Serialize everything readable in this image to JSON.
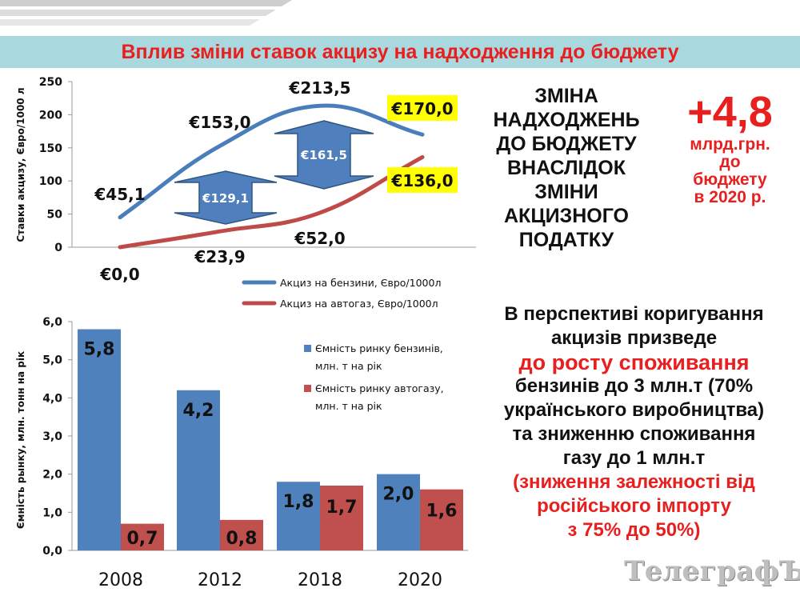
{
  "title": "Вплив зміни ставок акцизу на надходження до бюджету",
  "chart_data": [
    {
      "type": "line",
      "ylabel": "Ставки акцизу,  Євро/1000 л",
      "ylim": [
        0,
        250
      ],
      "yticks": [
        "0",
        "50",
        "100",
        "150",
        "200",
        "250"
      ],
      "x": [
        "2008",
        "2012",
        "2018",
        "2020"
      ],
      "series": [
        {
          "name": "Акциз на бензини, Євро/1000л",
          "values": [
            45.1,
            153.0,
            213.5,
            170.0
          ],
          "labels": [
            "€45,1",
            "€153,0",
            "€213,5",
            "€170,0"
          ],
          "color": "#4a7ebb"
        },
        {
          "name": "Акциз на автогаз, Євро/1000л",
          "values": [
            0.0,
            23.9,
            52.0,
            136.0
          ],
          "labels": [
            "€0,0",
            "€23,9",
            "€52,0",
            "€136,0"
          ],
          "color": "#be4b48"
        }
      ],
      "highlight_color": "#ffff00",
      "differences": [
        "€129,1",
        "€161,5"
      ],
      "legend": "bottom"
    },
    {
      "type": "bar",
      "ylabel": "Ємність  рынку,  млн. тонн на рік",
      "ylim": [
        0,
        6
      ],
      "yticks": [
        "0,0",
        "1,0",
        "2,0",
        "3,0",
        "4,0",
        "5,0",
        "6,0"
      ],
      "categories": [
        "2008",
        "2012",
        "2018",
        "2020"
      ],
      "series": [
        {
          "name": "Ємність ринку бензинів, млн. т на рік",
          "name_lines": [
            "Ємність ринку бензинів,",
            "млн. т на рік"
          ],
          "values": [
            5.8,
            4.2,
            1.8,
            2.0
          ],
          "labels": [
            "5,8",
            "4,2",
            "1,8",
            "2,0"
          ],
          "color": "#4f81bd"
        },
        {
          "name": "Ємність ринку автогазу, млн. т на рік",
          "name_lines": [
            "Ємність ринку автогазу,",
            "млн. т на рік"
          ],
          "values": [
            0.7,
            0.8,
            1.7,
            1.6
          ],
          "labels": [
            "0,7",
            "0,8",
            "1,7",
            "1,6"
          ],
          "color": "#c0504d"
        }
      ],
      "legend": "top-right"
    }
  ],
  "change": {
    "lines": [
      "ЗМІНА",
      "НАДХОДЖЕНЬ",
      "ДО БЮДЖЕТУ",
      "ВНАСЛІДОК",
      "ЗМІНИ",
      "АКЦИЗНОГО",
      "ПОДАТКУ"
    ],
    "value": "+4,8",
    "unit_lines": [
      "млрд.грн.",
      "до",
      "бюджету",
      "в 2020 р."
    ]
  },
  "perspective": {
    "line1": "В перспективі коригування",
    "line2": "акцизів призведе",
    "line3": "до росту споживання",
    "line4": "бензинів до 3 млн.т (70%",
    "line5": "українського виробництва)",
    "line6": "та зниженню споживання",
    "line7": "газу до 1 млн.т",
    "line8": "(зниження залежності від",
    "line9": "російського імпорту",
    "line10": "з 75% до 50%)"
  },
  "watermark": "ТелеграфЪ"
}
